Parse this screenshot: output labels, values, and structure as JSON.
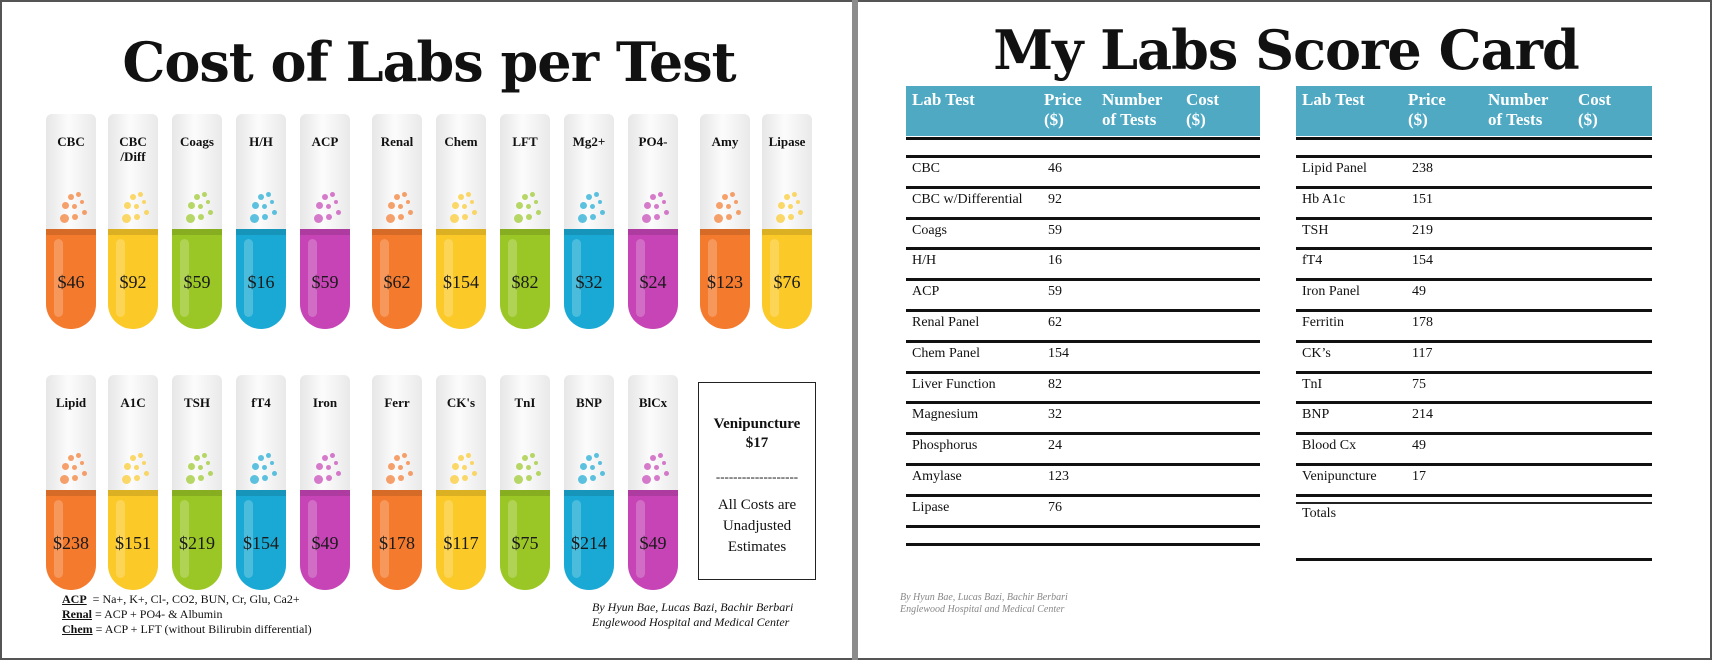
{
  "left": {
    "title": "Cost of Labs per Test",
    "row1": [
      {
        "label": "CBC",
        "price": "$46",
        "color": "#f47a2e"
      },
      {
        "label": "CBC\n/Diff",
        "price": "$92",
        "color": "#fbc928"
      },
      {
        "label": "Coags",
        "price": "$59",
        "color": "#9ac726"
      },
      {
        "label": "H/H",
        "price": "$16",
        "color": "#1aa9d4"
      },
      {
        "label": "ACP",
        "price": "$59",
        "color": "#c644b6"
      },
      {
        "label": "Renal",
        "price": "$62",
        "color": "#f47a2e"
      },
      {
        "label": "Chem",
        "price": "$154",
        "color": "#fbc928"
      },
      {
        "label": "LFT",
        "price": "$82",
        "color": "#9ac726"
      },
      {
        "label": "Mg2+",
        "price": "$32",
        "color": "#1aa9d4"
      },
      {
        "label": "PO4-",
        "price": "$24",
        "color": "#c644b6"
      },
      {
        "label": "Amy",
        "price": "$123",
        "color": "#f47a2e"
      },
      {
        "label": "Lipase",
        "price": "$76",
        "color": "#fbc928"
      }
    ],
    "row2": [
      {
        "label": "Lipid",
        "price": "$238",
        "color": "#f47a2e"
      },
      {
        "label": "A1C",
        "price": "$151",
        "color": "#fbc928"
      },
      {
        "label": "TSH",
        "price": "$219",
        "color": "#9ac726"
      },
      {
        "label": "fT4",
        "price": "$154",
        "color": "#1aa9d4"
      },
      {
        "label": "Iron",
        "price": "$49",
        "color": "#c644b6"
      },
      {
        "label": "Ferr",
        "price": "$178",
        "color": "#f47a2e"
      },
      {
        "label": "CK's",
        "price": "$117",
        "color": "#fbc928"
      },
      {
        "label": "TnI",
        "price": "$75",
        "color": "#9ac726"
      },
      {
        "label": "BNP",
        "price": "$214",
        "color": "#1aa9d4"
      },
      {
        "label": "BlCx",
        "price": "$49",
        "color": "#c644b6"
      }
    ],
    "venipuncture": {
      "label": "Venipuncture",
      "price": "$17",
      "divider": "-------------------",
      "note": "All Costs are Unadjusted Estimates"
    },
    "definitions": [
      {
        "term": "ACP",
        "text": "  = Na+, K+, Cl-, CO2, BUN, Cr, Glu, Ca2+"
      },
      {
        "term": "Renal",
        "text": " = ACP + PO4- & Albumin"
      },
      {
        "term": "Chem",
        "text": " = ACP + LFT (without Bilirubin differential)"
      }
    ],
    "credit_line1": "By Hyun Bae, Lucas Bazi, Bachir Berbari",
    "credit_line2": "Englewood Hospital and Medical Center"
  },
  "right": {
    "title": "My Labs Score Card",
    "table1": {
      "headers": [
        "Lab Test",
        "Price\n($)",
        "Number\nof Tests",
        "Cost\n($)"
      ],
      "rows": [
        {
          "test": "CBC",
          "price": "46"
        },
        {
          "test": "CBC w/Differential",
          "price": "92"
        },
        {
          "test": "Coags",
          "price": "59"
        },
        {
          "test": "H/H",
          "price": "16"
        },
        {
          "test": "ACP",
          "price": "59"
        },
        {
          "test": "Renal Panel",
          "price": "62"
        },
        {
          "test": "Chem Panel",
          "price": "154"
        },
        {
          "test": "Liver Function",
          "price": "82"
        },
        {
          "test": "Magnesium",
          "price": "32"
        },
        {
          "test": "Phosphorus",
          "price": "24"
        },
        {
          "test": "Amylase",
          "price": "123"
        },
        {
          "test": "Lipase",
          "price": "76"
        }
      ]
    },
    "table2": {
      "headers": [
        "Lab Test",
        "Price\n($)",
        "Number\nof Tests",
        "Cost\n($)"
      ],
      "rows": [
        {
          "test": "Lipid Panel",
          "price": "238"
        },
        {
          "test": "Hb A1c",
          "price": "151"
        },
        {
          "test": "TSH",
          "price": "219"
        },
        {
          "test": "fT4",
          "price": "154"
        },
        {
          "test": "Iron Panel",
          "price": "49"
        },
        {
          "test": "Ferritin",
          "price": "178"
        },
        {
          "test": "CK’s",
          "price": "117"
        },
        {
          "test": "TnI",
          "price": "75"
        },
        {
          "test": "BNP",
          "price": "214"
        },
        {
          "test": "Blood Cx",
          "price": "49"
        },
        {
          "test": "Venipuncture",
          "price": "17"
        }
      ],
      "totals_label": "Totals"
    },
    "credit_line1": "By Hyun Bae, Lucas Bazi, Bachir Berbari",
    "credit_line2": "Englewood Hospital and Medical Center"
  }
}
